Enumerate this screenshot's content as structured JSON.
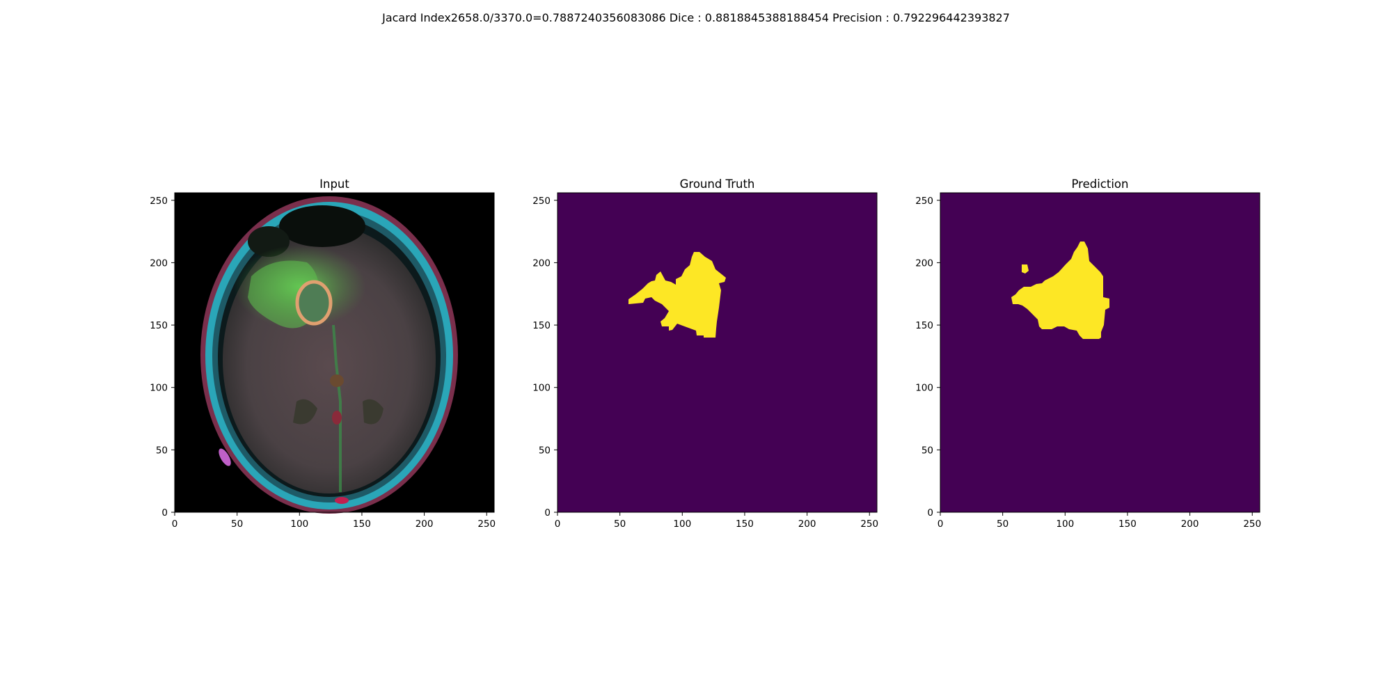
{
  "suptitle": "Jacard Index2658.0/3370.0=0.7887240356083086 Dice : 0.8818845388188454 Precision : 0.792296442393827",
  "panels": [
    {
      "title": "Input"
    },
    {
      "title": "Ground Truth"
    },
    {
      "title": "Prediction"
    }
  ],
  "axes": {
    "x_ticks": [
      "0",
      "50",
      "100",
      "150",
      "200",
      "250"
    ],
    "y_ticks": [
      "0",
      "50",
      "100",
      "150",
      "200",
      "250"
    ],
    "xlim": [
      0,
      256
    ],
    "ylim": [
      256,
      0
    ]
  },
  "colors": {
    "mask_background": "#440154",
    "mask_foreground": "#fde725",
    "input_background": "#000000"
  }
}
